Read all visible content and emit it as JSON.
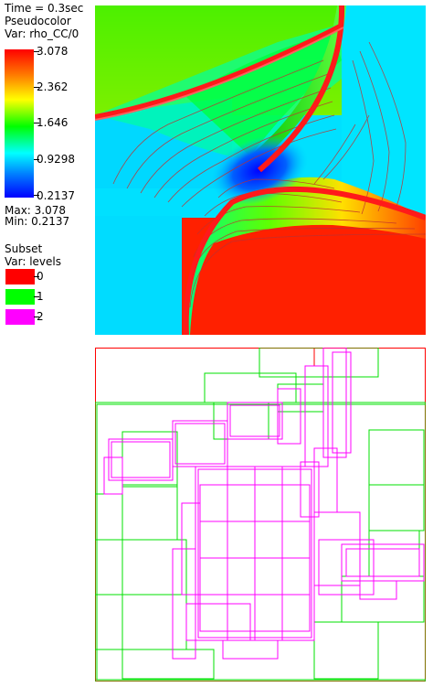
{
  "legend": {
    "time": "Time = 0.3sec",
    "plot_type": "Pseudocolor",
    "var": "Var: rho_CC/0",
    "ticks": [
      "3.078",
      "2.362",
      "1.646",
      "0.9298",
      "0.2137"
    ],
    "max": "Max:  3.078",
    "min": "Min:  0.2137"
  },
  "subset": {
    "title": "Subset",
    "var": "Var: levels",
    "items": [
      {
        "label": "0",
        "color": "#ff0000"
      },
      {
        "label": "1",
        "color": "#00ff00"
      },
      {
        "label": "2",
        "color": "#ff00ff"
      }
    ]
  },
  "colors": {
    "red": "#ff0000",
    "green": "#00ff00",
    "magenta": "#ff00ff",
    "cyan": "#00e5ff",
    "lime": "#40f000"
  }
}
